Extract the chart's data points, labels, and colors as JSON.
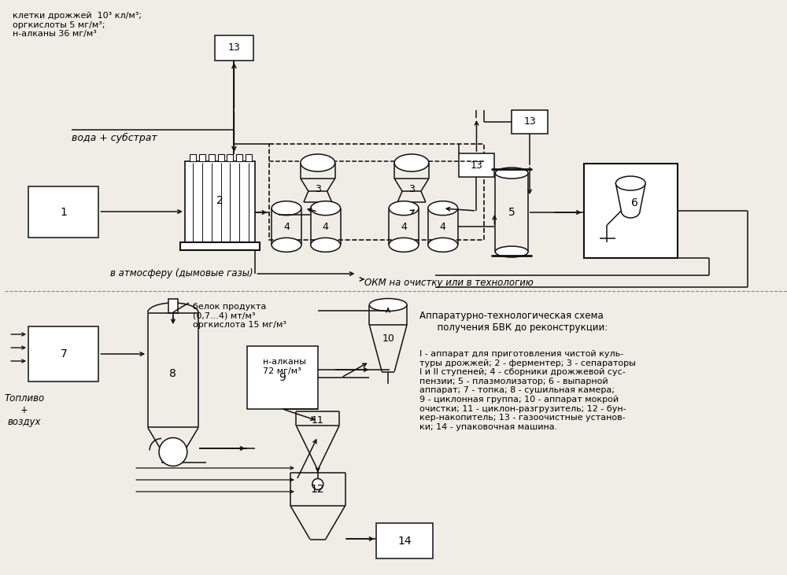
{
  "bg_color": "#f0ede6",
  "lc": "#111111",
  "top_label": "клетки дрожжей  10³ кл/м³;\nоргкислоты 5 мг/м³;\nн-алканы 36 мг/м³",
  "water_label": "вода + субстрат",
  "atm_label": "в атмосферу (дымовые газы)",
  "okm_label": "ОКМ на очистку или в технологию",
  "protein_label": "белок продукта\n(0,7...4) мт/м³\nоргкислота 15 мг/м³",
  "alkane_label": "н-алканы\n72 мг/м³",
  "fuel_label": "Топливо\n+\nвоздух",
  "title_text": "Аппаратурно-технологическая схема\n      получения БВК до реконструкции:",
  "legend_text": "I - аппарат для приготовления чистой куль-\nтуры дрожжей; 2 - ферментер; 3 - сепараторы\nI и II ступеней; 4 - сборники дрожжевой сус-\nпензии; 5 - плазмолизатор; 6 - выпарной\nаппарат; 7 - топка; 8 - сушильная камера;\n9 - циклонная группа; 10 - аппарат мокрой\nочистки; 11 - циклон-разгрузитель; 12 - бун-\nкер-накопитель; 13 - газоочистные установ-\nки; 14 - упаковочная машина."
}
